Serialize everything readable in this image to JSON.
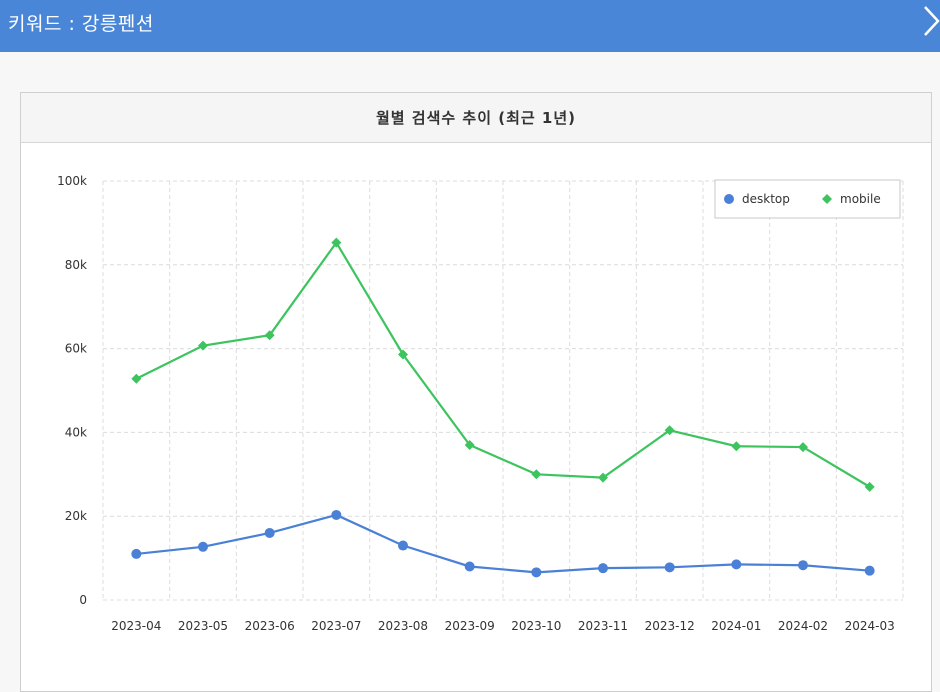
{
  "header": {
    "title": "키워드 : 강릉펜션",
    "close_icon": "chevron-right-icon"
  },
  "panel": {
    "title": "월별 검색수 추이 (최근 1년)"
  },
  "colors": {
    "header_bg": "#4a86d8",
    "desktop": "#4a80d6",
    "mobile": "#3dc45e"
  },
  "chart_data": {
    "type": "line",
    "title": "월별 검색수 추이 (최근 1년)",
    "categories": [
      "2023-04",
      "2023-05",
      "2023-06",
      "2023-07",
      "2023-08",
      "2023-09",
      "2023-10",
      "2023-11",
      "2023-12",
      "2024-01",
      "2024-02",
      "2024-03"
    ],
    "series": [
      {
        "name": "desktop",
        "color": "#4a80d6",
        "marker": "circle",
        "values": [
          11000,
          12700,
          16000,
          20300,
          13000,
          8000,
          6600,
          7600,
          7800,
          8500,
          8300,
          7000
        ]
      },
      {
        "name": "mobile",
        "color": "#3dc45e",
        "marker": "diamond",
        "values": [
          52800,
          60700,
          63200,
          85300,
          58600,
          37000,
          30000,
          29200,
          40500,
          36700,
          36500,
          27000
        ]
      }
    ],
    "y_ticks": [
      "0",
      "20k",
      "40k",
      "60k",
      "80k",
      "100k"
    ],
    "ylim": [
      0,
      100000
    ],
    "grid": true,
    "legend_position": "top-right"
  }
}
